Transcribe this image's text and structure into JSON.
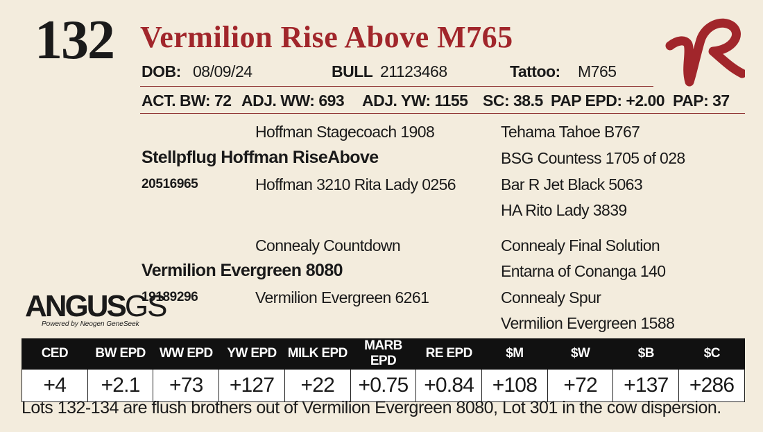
{
  "lot": {
    "number": "132",
    "name": "Vermilion Rise Above M765"
  },
  "info": {
    "dob_label": "DOB:",
    "dob_value": "08/09/24",
    "type": "BULL",
    "reg": "21123468",
    "tattoo_label": "Tattoo:",
    "tattoo_value": "M765"
  },
  "measures": {
    "act_bw": "ACT. BW: 72",
    "adj_ww": "ADJ. WW: 693",
    "adj_yw": "ADJ. YW: 1155",
    "sc": "SC: 38.5",
    "pap_epd": "PAP EPD: +2.00",
    "pap": "PAP: 37"
  },
  "pedigree": {
    "sire": {
      "name": "Stellpflug Hoffman RiseAbove",
      "reg": "20516965"
    },
    "sire_sire": "Hoffman Stagecoach 1908",
    "sire_dam": "Hoffman 3210 Rita Lady 0256",
    "sire_sire_sire": "Tehama Tahoe B767",
    "sire_sire_dam": "BSG Countess 1705 of 028",
    "sire_dam_sire": "Bar R Jet Black 5063",
    "sire_dam_dam": "HA Rito Lady 3839",
    "dam": {
      "name": "Vermilion Evergreen 8080",
      "reg": "19189296"
    },
    "dam_sire": "Connealy Countdown",
    "dam_dam": "Vermilion Evergreen 6261",
    "dam_sire_sire": "Connealy Final Solution",
    "dam_sire_dam": "Entarna of Conanga 140",
    "dam_dam_sire": "Connealy Spur",
    "dam_dam_dam": "Vermilion Evergreen 1588"
  },
  "logo": {
    "main": "ANGUS",
    "suffix": "GS",
    "tagline": "Powered by Neogen GeneSeek",
    "brand_mark": "VR",
    "brand_color": "#a1262b"
  },
  "epds": {
    "headers": [
      "CED",
      "BW EPD",
      "WW EPD",
      "YW EPD",
      "MILK EPD",
      "MARB EPD",
      "RE EPD",
      "$M",
      "$W",
      "$B",
      "$C"
    ],
    "values": [
      "+4",
      "+2.1",
      "+73",
      "+127",
      "+22",
      "+0.75",
      "+0.84",
      "+108",
      "+72",
      "+137",
      "+286"
    ]
  },
  "footer": "Lots 132-134 are flush brothers out of Vermilion Evergreen 8080, Lot 301 in the cow dispersion."
}
